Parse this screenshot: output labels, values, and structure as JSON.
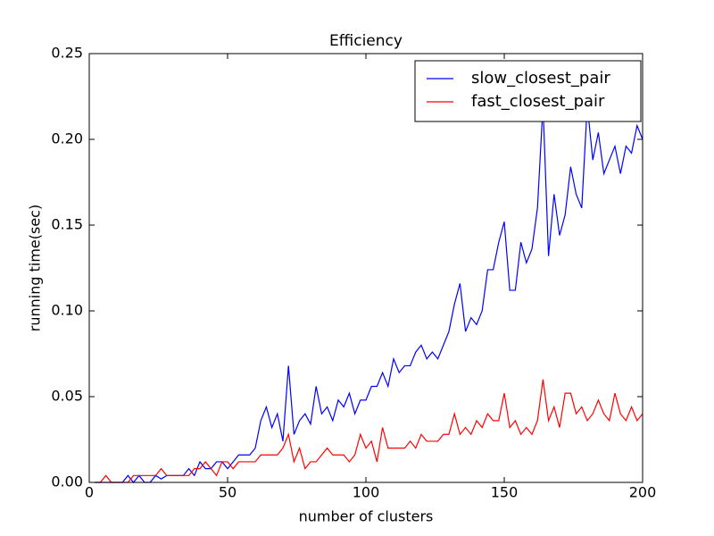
{
  "chart_data": {
    "type": "line",
    "title": "Efficiency",
    "xlabel": "number of clusters",
    "ylabel": "running time(sec)",
    "x": [
      2,
      4,
      6,
      8,
      10,
      12,
      14,
      16,
      18,
      20,
      22,
      24,
      26,
      28,
      30,
      32,
      34,
      36,
      38,
      40,
      42,
      44,
      46,
      48,
      50,
      52,
      54,
      56,
      58,
      60,
      62,
      64,
      66,
      68,
      70,
      72,
      74,
      76,
      78,
      80,
      82,
      84,
      86,
      88,
      90,
      92,
      94,
      96,
      98,
      100,
      102,
      104,
      106,
      108,
      110,
      112,
      114,
      116,
      118,
      120,
      122,
      124,
      126,
      128,
      130,
      132,
      134,
      136,
      138,
      140,
      142,
      144,
      146,
      148,
      150,
      152,
      154,
      156,
      158,
      160,
      162,
      164,
      166,
      168,
      170,
      172,
      174,
      176,
      178,
      180,
      182,
      184,
      186,
      188,
      190,
      192,
      194,
      196,
      198,
      200
    ],
    "series": [
      {
        "name": "slow_closest_pair",
        "color": "#0000ff",
        "values": [
          0,
          0,
          0,
          0,
          0,
          0,
          0.004,
          0,
          0.004,
          0,
          0,
          0.004,
          0.002,
          0.004,
          0.004,
          0.004,
          0.004,
          0.008,
          0.004,
          0.012,
          0.008,
          0.008,
          0.012,
          0.012,
          0.008,
          0.012,
          0.016,
          0.016,
          0.016,
          0.02,
          0.036,
          0.044,
          0.032,
          0.04,
          0.024,
          0.068,
          0.028,
          0.036,
          0.04,
          0.034,
          0.056,
          0.04,
          0.044,
          0.036,
          0.048,
          0.044,
          0.052,
          0.04,
          0.048,
          0.048,
          0.056,
          0.056,
          0.064,
          0.056,
          0.072,
          0.064,
          0.068,
          0.068,
          0.076,
          0.08,
          0.072,
          0.076,
          0.072,
          0.08,
          0.088,
          0.104,
          0.116,
          0.088,
          0.096,
          0.092,
          0.1,
          0.124,
          0.124,
          0.14,
          0.152,
          0.112,
          0.112,
          0.14,
          0.128,
          0.136,
          0.16,
          0.22,
          0.132,
          0.168,
          0.144,
          0.156,
          0.184,
          0.168,
          0.16,
          0.22,
          0.188,
          0.204,
          0.18,
          0.188,
          0.196,
          0.18,
          0.196,
          0.192,
          0.208,
          0.2
        ]
      },
      {
        "name": "fast_closest_pair",
        "color": "#ff0000",
        "values": [
          0,
          0,
          0.004,
          0,
          0,
          0,
          0,
          0.004,
          0.004,
          0.004,
          0.004,
          0.004,
          0.008,
          0.004,
          0.004,
          0.004,
          0.004,
          0.004,
          0.008,
          0.008,
          0.012,
          0.008,
          0.004,
          0.012,
          0.012,
          0.008,
          0.012,
          0.012,
          0.012,
          0.012,
          0.016,
          0.016,
          0.016,
          0.016,
          0.02,
          0.028,
          0.012,
          0.02,
          0.008,
          0.012,
          0.012,
          0.016,
          0.02,
          0.016,
          0.016,
          0.016,
          0.012,
          0.016,
          0.028,
          0.02,
          0.024,
          0.012,
          0.032,
          0.02,
          0.02,
          0.02,
          0.02,
          0.024,
          0.02,
          0.028,
          0.024,
          0.024,
          0.024,
          0.028,
          0.028,
          0.04,
          0.028,
          0.032,
          0.028,
          0.036,
          0.032,
          0.04,
          0.036,
          0.036,
          0.052,
          0.032,
          0.036,
          0.028,
          0.032,
          0.028,
          0.036,
          0.06,
          0.036,
          0.044,
          0.032,
          0.052,
          0.052,
          0.04,
          0.044,
          0.036,
          0.04,
          0.048,
          0.04,
          0.036,
          0.052,
          0.04,
          0.036,
          0.044,
          0.036,
          0.04
        ]
      }
    ],
    "xlim": [
      0,
      200
    ],
    "xticks": [
      0,
      50,
      100,
      150,
      200
    ],
    "ylim": [
      0,
      0.25
    ],
    "yticks": [
      {
        "value": 0,
        "label": "0.00"
      },
      {
        "value": 0.05,
        "label": "0.05"
      },
      {
        "value": 0.1,
        "label": "0.10"
      },
      {
        "value": 0.15,
        "label": "0.15"
      },
      {
        "value": 0.2,
        "label": "0.20"
      },
      {
        "value": 0.25,
        "label": "0.25"
      }
    ],
    "legend": "upper right"
  }
}
